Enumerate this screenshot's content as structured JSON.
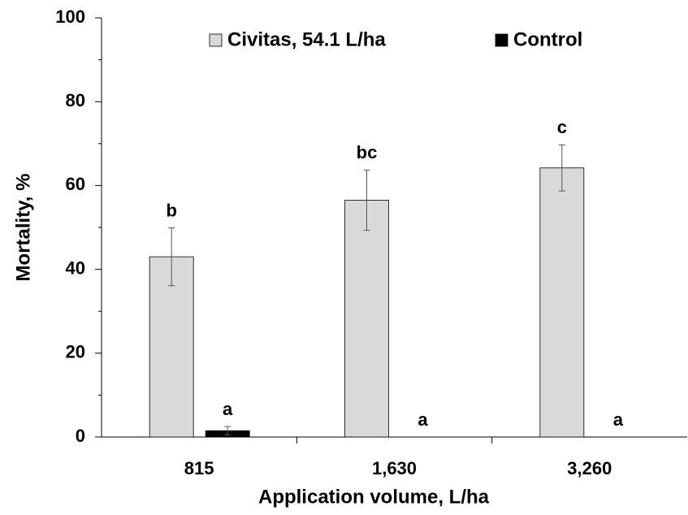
{
  "chart_data": {
    "type": "bar",
    "x_label": "Application volume, L/ha",
    "y_label": "Mortality, %",
    "categories": [
      "815",
      "1,630",
      "3,260"
    ],
    "series": [
      {
        "name": "Civitas, 54.1 L/ha",
        "color": "#d9d9d9",
        "values": [
          43,
          56.5,
          64.2
        ],
        "errors": [
          6.9,
          7.2,
          5.5
        ],
        "letters": [
          "b",
          "bc",
          "c"
        ]
      },
      {
        "name": "Control",
        "color": "#000000",
        "values": [
          1.5,
          0,
          0
        ],
        "errors": [
          1,
          0,
          0
        ],
        "letters": [
          "a",
          "a",
          "a"
        ]
      }
    ],
    "ylim": [
      0,
      100
    ],
    "yticks": [
      0,
      20,
      40,
      60,
      80,
      100
    ],
    "yminor_ticks": [
      10,
      30,
      50,
      70,
      90
    ],
    "grid": false,
    "legend_position": "top"
  }
}
